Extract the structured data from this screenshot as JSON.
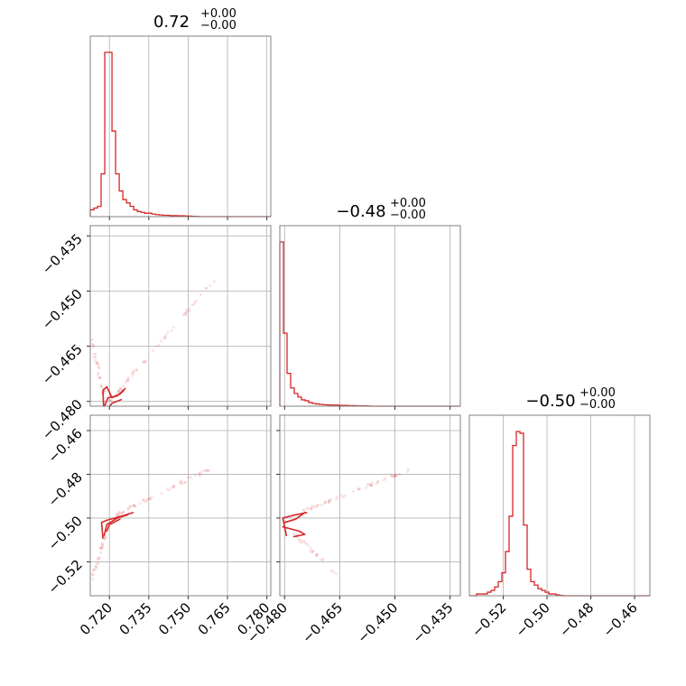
{
  "chart_data": {
    "type": "corner",
    "color": "#d62728",
    "parameters": [
      {
        "title_main": "0.72",
        "title_sup": "+0.00",
        "title_sub": "−0.00",
        "range": [
          0.7127,
          0.7815
        ],
        "ticks": [
          0.72,
          0.735,
          0.75,
          0.765,
          0.78
        ],
        "tick_labels": [
          "0.720",
          "0.735",
          "0.750",
          "0.765",
          "0.780"
        ]
      },
      {
        "title_main": "−0.48",
        "title_sup": "+0.00",
        "title_sub": "−0.00",
        "range": [
          -0.4813,
          -0.4322
        ],
        "ticks": [
          -0.48,
          -0.465,
          -0.45,
          -0.435
        ],
        "tick_labels": [
          "−0.480",
          "−0.465",
          "−0.450",
          "−0.435"
        ]
      },
      {
        "title_main": "−0.50",
        "title_sup": "+0.00",
        "title_sub": "−0.00",
        "range": [
          -0.5355,
          -0.453
        ],
        "ticks": [
          -0.52,
          -0.5,
          -0.48,
          -0.46
        ],
        "tick_labels": [
          "−0.52",
          "−0.50",
          "−0.48",
          "−0.46"
        ]
      }
    ],
    "histograms": [
      {
        "param": 0,
        "bin_start": 0.7127,
        "bin_width": 0.00138,
        "counts": [
          0.4,
          0.5,
          0.6,
          2.5,
          9.6,
          9.6,
          5.0,
          2.5,
          1.5,
          1.0,
          0.8,
          0.6,
          0.4,
          0.3,
          0.25,
          0.2,
          0.2,
          0.15,
          0.12,
          0.1,
          0.08,
          0.08,
          0.06,
          0.06,
          0.05,
          0.05,
          0.04,
          0.03,
          0.02,
          0.01,
          0.0,
          0.0,
          0.0,
          0.0,
          0.0,
          0.0,
          0.0,
          0.0,
          0.0,
          0.0,
          0.0,
          0.0,
          0.0,
          0.0,
          0.0,
          0.0,
          0.0,
          0.0,
          0.0,
          0.0
        ]
      },
      {
        "param": 1,
        "bin_start": -0.4813,
        "bin_width": 0.000982,
        "counts": [
          9.0,
          4.0,
          1.8,
          1.0,
          0.7,
          0.5,
          0.35,
          0.3,
          0.2,
          0.15,
          0.12,
          0.1,
          0.08,
          0.07,
          0.06,
          0.06,
          0.05,
          0.04,
          0.04,
          0.03,
          0.03,
          0.02,
          0.02,
          0.02,
          0.01,
          0.0,
          0.0,
          0.0,
          0.0,
          0.0,
          0.0,
          0.0,
          0.0,
          0.0,
          0.0,
          0.0,
          0.0,
          0.0,
          0.0,
          0.0,
          0.0,
          0.0,
          0.0,
          0.0,
          0.0,
          0.0,
          0.0,
          0.0,
          0.0,
          0.0
        ]
      },
      {
        "param": 2,
        "bin_start": -0.5355,
        "bin_width": 0.00165,
        "counts": [
          0.0,
          0.0,
          0.1,
          0.1,
          0.1,
          0.2,
          0.3,
          0.5,
          0.8,
          1.3,
          2.5,
          4.5,
          8.5,
          9.3,
          9.2,
          4.0,
          1.5,
          0.8,
          0.6,
          0.4,
          0.3,
          0.2,
          0.1,
          0.1,
          0.05,
          0.02,
          0.0,
          0.0,
          0.0,
          0.0,
          0.0,
          0.0,
          0.0,
          0.0,
          0.0,
          0.0,
          0.0,
          0.0,
          0.0,
          0.0,
          0.0,
          0.0,
          0.0,
          0.0,
          0.0,
          0.0,
          0.0,
          0.0,
          0.0,
          0.0
        ]
      }
    ],
    "scatter_panels": [
      {
        "x_param": 0,
        "y_param": 1,
        "ridges": [
          {
            "points": [
              [
                0.7185,
                -0.4812
              ],
              [
                0.76,
                -0.447
              ]
            ],
            "n": 60
          },
          {
            "points": [
              [
                0.7185,
                -0.48
              ],
              [
                0.7131,
                -0.463
              ]
            ],
            "n": 35
          }
        ],
        "contours": [
          [
            [
              0.7178,
              -0.4815
            ],
            [
              0.7175,
              -0.477
            ],
            [
              0.719,
              -0.476
            ],
            [
              0.721,
              -0.479
            ],
            [
              0.724,
              -0.478
            ],
            [
              0.7255,
              -0.477
            ]
          ],
          [
            [
              0.718,
              -0.4815
            ],
            [
              0.7195,
              -0.479
            ],
            [
              0.723,
              -0.4785
            ],
            [
              0.726,
              -0.4765
            ]
          ],
          [
            [
              0.72,
              -0.4815
            ],
            [
              0.721,
              -0.4805
            ],
            [
              0.7245,
              -0.4795
            ]
          ]
        ]
      },
      {
        "x_param": 0,
        "y_param": 2,
        "ridges": [
          {
            "points": [
              [
                0.723,
                -0.4985
              ],
              [
                0.758,
                -0.4775
              ]
            ],
            "n": 55
          },
          {
            "points": [
              [
                0.718,
                -0.509
              ],
              [
                0.7135,
                -0.528
              ]
            ],
            "n": 30
          }
        ],
        "contours": [
          [
            [
              0.7175,
              -0.509
            ],
            [
              0.717,
              -0.502
            ],
            [
              0.719,
              -0.501
            ],
            [
              0.725,
              -0.499
            ],
            [
              0.729,
              -0.4975
            ]
          ],
          [
            [
              0.718,
              -0.508
            ],
            [
              0.719,
              -0.503
            ],
            [
              0.723,
              -0.5
            ],
            [
              0.727,
              -0.4985
            ]
          ],
          [
            [
              0.719,
              -0.506
            ],
            [
              0.72,
              -0.503
            ],
            [
              0.724,
              -0.5005
            ]
          ]
        ]
      },
      {
        "x_param": 1,
        "y_param": 2,
        "ridges": [
          {
            "points": [
              [
                -0.4745,
                -0.4965
              ],
              [
                -0.4465,
                -0.478
              ]
            ],
            "n": 55
          },
          {
            "points": [
              [
                -0.477,
                -0.508
              ],
              [
                -0.465,
                -0.527
              ]
            ],
            "n": 28
          }
        ],
        "contours": [
          [
            [
              -0.4795,
              -0.508
            ],
            [
              -0.4805,
              -0.5
            ],
            [
              -0.477,
              -0.4985
            ],
            [
              -0.474,
              -0.4975
            ]
          ],
          [
            [
              -0.4805,
              -0.504
            ],
            [
              -0.476,
              -0.506
            ],
            [
              -0.4745,
              -0.5075
            ],
            [
              -0.4775,
              -0.5085
            ]
          ],
          [
            [
              -0.48,
              -0.502
            ],
            [
              -0.477,
              -0.5005
            ],
            [
              -0.4745,
              -0.4975
            ]
          ]
        ]
      }
    ],
    "grid": true
  }
}
